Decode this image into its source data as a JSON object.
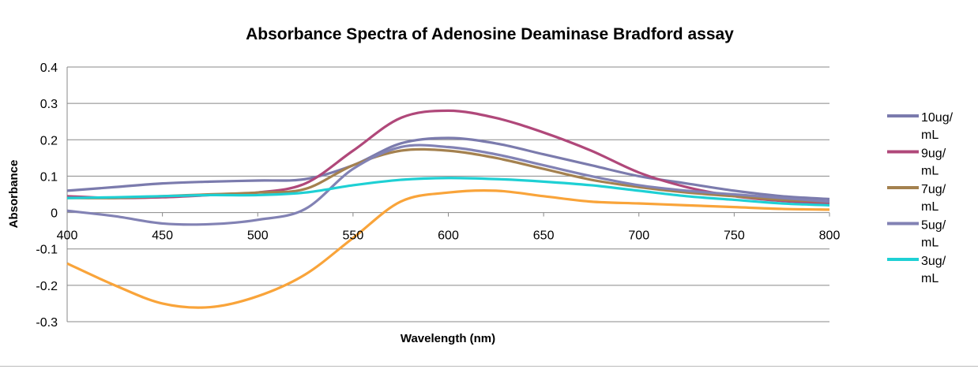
{
  "chart_data": {
    "type": "line",
    "title": "Absorbance Spectra of Adenosine Deaminase Bradford assay",
    "xlabel": "Wavelength (nm)",
    "ylabel": "Absorbance",
    "xlim": [
      400,
      800
    ],
    "ylim": [
      -0.3,
      0.4
    ],
    "xticks": [
      "400",
      "450",
      "500",
      "550",
      "600",
      "650",
      "700",
      "750",
      "800"
    ],
    "yticks": [
      "0.4",
      "0.3",
      "0.2",
      "0.1",
      "0",
      "-0.1",
      "-0.2",
      "-0.3"
    ],
    "grid": true,
    "legend": "right",
    "x": [
      400,
      425,
      450,
      475,
      500,
      525,
      550,
      575,
      600,
      625,
      650,
      675,
      700,
      725,
      750,
      775,
      800
    ],
    "series": [
      {
        "name": "10ug/\nmL",
        "l1": "10ug/",
        "l2": "mL",
        "color": "#7B7BAD",
        "values": [
          0.06,
          0.07,
          0.08,
          0.085,
          0.088,
          0.092,
          0.13,
          0.19,
          0.205,
          0.19,
          0.16,
          0.13,
          0.1,
          0.08,
          0.06,
          0.045,
          0.037
        ]
      },
      {
        "name": "9ug/\nmL",
        "l1": "9ug/",
        "l2": "mL",
        "color": "#B0487A",
        "values": [
          0.045,
          0.04,
          0.042,
          0.048,
          0.055,
          0.08,
          0.17,
          0.26,
          0.28,
          0.26,
          0.22,
          0.17,
          0.11,
          0.07,
          0.045,
          0.032,
          0.025
        ]
      },
      {
        "name": "7ug/\nmL",
        "l1": "7ug/",
        "l2": "mL",
        "color": "#A4814F",
        "values": [
          0.04,
          0.04,
          0.045,
          0.05,
          0.055,
          0.065,
          0.13,
          0.17,
          0.17,
          0.15,
          0.12,
          0.09,
          0.07,
          0.055,
          0.045,
          0.035,
          0.03
        ]
      },
      {
        "name": "5ug/\nmL",
        "l1": "5ug/",
        "l2": "mL",
        "color": "#8282B4",
        "values": [
          0.005,
          -0.01,
          -0.03,
          -0.032,
          -0.02,
          0.01,
          0.12,
          0.18,
          0.18,
          0.16,
          0.13,
          0.1,
          0.075,
          0.06,
          0.05,
          0.04,
          0.03
        ]
      },
      {
        "name": "3ug/\nmL",
        "l1": "3ug/",
        "l2": "mL",
        "color": "#1ED0D4",
        "values": [
          0.04,
          0.042,
          0.045,
          0.048,
          0.048,
          0.055,
          0.075,
          0.09,
          0.095,
          0.092,
          0.085,
          0.075,
          0.06,
          0.045,
          0.035,
          0.025,
          0.02
        ]
      },
      {
        "name": "",
        "color": "#F9A43A",
        "values": [
          -0.14,
          -0.2,
          -0.25,
          -0.26,
          -0.23,
          -0.17,
          -0.07,
          0.03,
          0.055,
          0.06,
          0.045,
          0.03,
          0.025,
          0.02,
          0.015,
          0.01,
          0.008
        ]
      }
    ]
  }
}
